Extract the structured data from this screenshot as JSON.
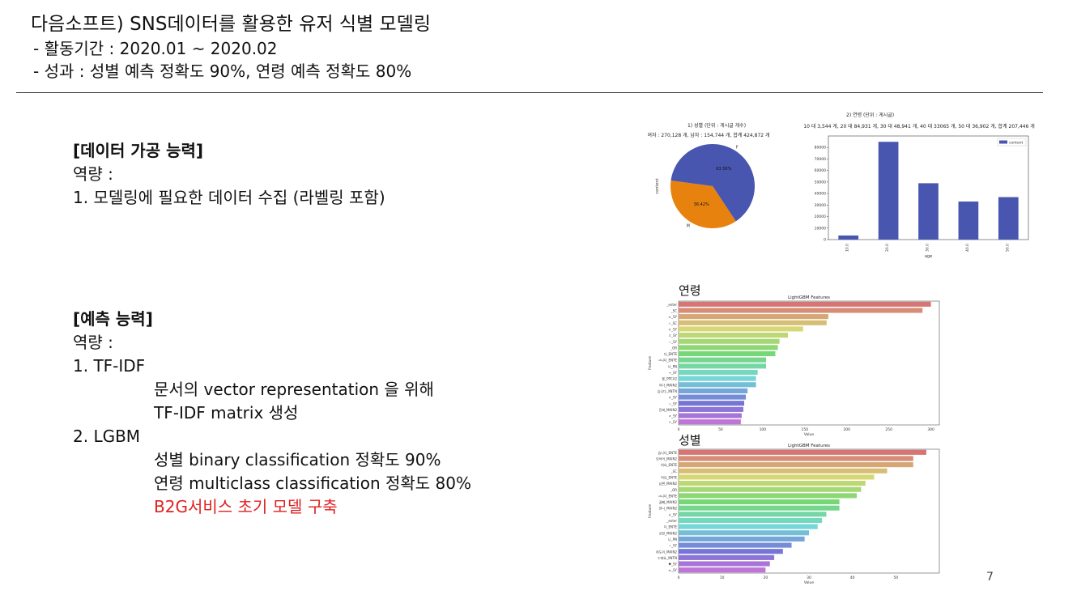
{
  "header": {
    "title": "다음소프트) SNS데이터를 활용한 유저 식별 모델링",
    "period": "- 활동기간 : 2020.01 ~ 2020.02",
    "result": "- 성과 : 성별 예측 정확도 90%, 연령 예측 정확도 80%"
  },
  "section1": {
    "heading": "[데이터 가공 능력]",
    "sub": "역량 :",
    "item1": "1. 모델링에 필요한 데이터 수집 (라벨링 포함)"
  },
  "section2": {
    "heading": "[예측 능력]",
    "sub": "역량 :",
    "item1": "1. TF-IDF",
    "item1_a": "문서의 vector representation 을 위해",
    "item1_b": "TF-IDF matrix 생성",
    "item2": "2. LGBM",
    "item2_a": "성별 binary classification 정확도 90%",
    "item2_b": "연령 multiclass classification 정확도 80%",
    "item2_c": "B2G서비스 초기 모델 구축"
  },
  "labels": {
    "age": "연령",
    "gender": "성별"
  },
  "page_number": "7",
  "colors": {
    "accent_red": "#e02020",
    "bar_blue": "#4856b0",
    "pie_orange": "#e8820e"
  },
  "chart_data": [
    {
      "type": "pie",
      "title": "1) 성별 (단위 : 게시글 개수)",
      "subtitle": "여자 : 270,128 개, 남자 : 154,744 개, 합계 424,872 개",
      "ylabel": "content",
      "labels": [
        "F",
        "M"
      ],
      "values": [
        63.58,
        36.42
      ],
      "pct_labels": [
        "63.58%",
        "36.42%"
      ],
      "colors": [
        "#4856b0",
        "#e8820e"
      ]
    },
    {
      "type": "bar",
      "title": "2) 연령 (단위 : 게시글)",
      "subtitle": "10 대 3,544 개, 20 대 84,931 개, 30 대 48,941 개, 40 대 33065 개, 50 대 36,902 개, 합계 207,446 개",
      "categories": [
        "10.0",
        "20.0",
        "30.0",
        "40.0",
        "50.0"
      ],
      "values": [
        3544,
        84931,
        48941,
        33065,
        36902
      ],
      "xlabel": "age",
      "legend": "content",
      "legend_position": "top-right",
      "ylim": [
        0,
        90000
      ],
      "yticks": [
        "0",
        "10000",
        "20000",
        "30000",
        "40000",
        "50000",
        "60000",
        "70000",
        "80000"
      ]
    },
    {
      "type": "bar",
      "orientation": "horizontal",
      "title": "LightGBM Features",
      "ylabel": "Feature",
      "xlabel": "Value",
      "xlim": [
        0,
        310
      ],
      "xticks": [
        "0",
        "50",
        "100",
        "150",
        "200",
        "250",
        "300"
      ],
      "features": [
        "_enter",
        "_SC",
        "ㅠ_SY",
        "ㅅ_SC",
        "ㅠ_SY",
        "ㅎ_SY",
        "ㅡ_SY",
        "_OR",
        "다_ENTE",
        "ㅋ니다_ENTE",
        "니_PN",
        "ㅜ_SY",
        "을_PPCA2",
        "이다_MAIN2",
        "습니다_XNTN",
        "ㅎ_SY",
        "ㅅ_SY",
        "진짜_MAIN2",
        "ㅈ_SY",
        "ㅇ_SY"
      ],
      "values": [
        300,
        290,
        178,
        176,
        148,
        130,
        120,
        118,
        115,
        104,
        104,
        94,
        92,
        92,
        82,
        80,
        78,
        77,
        75,
        74
      ]
    },
    {
      "type": "bar",
      "orientation": "horizontal",
      "title": "LightGBM Features",
      "ylabel": "Feature",
      "xlabel": "Value",
      "xlim": [
        0,
        60
      ],
      "xticks": [
        "0",
        "10",
        "20",
        "30",
        "40",
        "50"
      ],
      "features": [
        "습니다_ENTE",
        "되어어_MAIN2",
        "여요_ENTE",
        "_SC",
        "어요_ENTE",
        "남편_MAIN2",
        "_OR",
        "ㅋ니다_ENTE",
        "꿈뻬_MAIN2",
        "언니_MAIN2",
        "ㅎ_SY",
        "_enter",
        "다_ENTE",
        "신랑_MAIN2",
        "니_PN",
        "ㅅ_SY",
        "여도리_MAIN2",
        "ㅎ에요_XNTN",
        "♥_SY",
        "ㅠ_SY"
      ],
      "values": [
        57,
        54,
        54,
        48,
        45,
        43,
        42,
        41,
        37,
        37,
        34,
        33,
        32,
        30,
        29,
        26,
        24,
        22,
        21,
        20
      ]
    }
  ]
}
